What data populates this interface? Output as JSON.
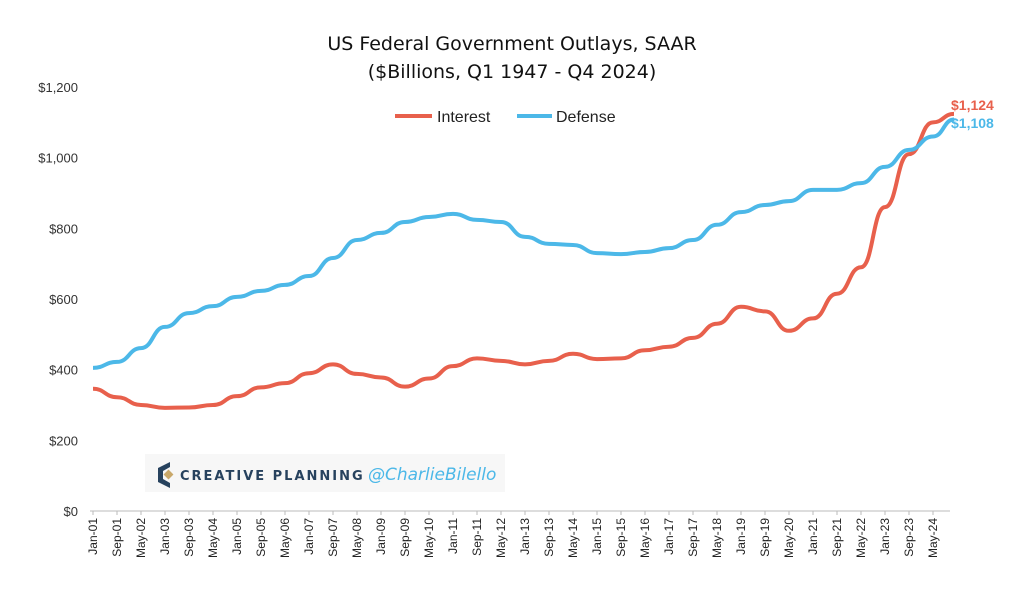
{
  "chart_data": {
    "type": "line",
    "title": "US Federal Government Outlays, SAAR",
    "subtitle": "($Billions, Q1 1947 - Q4 2024)",
    "ylim": [
      0,
      1200
    ],
    "yticks": [
      0,
      200,
      400,
      600,
      800,
      1000,
      1200
    ],
    "ytick_labels": [
      "$0",
      "$200",
      "$400",
      "$600",
      "$800",
      "$1,000",
      "$1,200"
    ],
    "xtick_labels": [
      "Jan-01",
      "Sep-01",
      "May-02",
      "Jan-03",
      "Sep-03",
      "May-04",
      "Jan-05",
      "Sep-05",
      "May-06",
      "Jan-07",
      "Sep-07",
      "May-08",
      "Jan-09",
      "Sep-09",
      "May-10",
      "Jan-11",
      "Sep-11",
      "May-12",
      "Jan-13",
      "Sep-13",
      "May-14",
      "Jan-15",
      "Sep-15",
      "May-16",
      "Jan-17",
      "Sep-17",
      "May-18",
      "Jan-19",
      "Sep-19",
      "May-20",
      "Jan-21",
      "Sep-21",
      "May-22",
      "Jan-23",
      "Sep-23",
      "May-24"
    ],
    "grid": false,
    "legend_position": "top-center",
    "x": [
      "2001-01",
      "2001-09",
      "2002-05",
      "2003-01",
      "2003-09",
      "2004-05",
      "2005-01",
      "2005-09",
      "2006-05",
      "2007-01",
      "2007-09",
      "2008-05",
      "2009-01",
      "2009-09",
      "2010-05",
      "2011-01",
      "2011-09",
      "2012-05",
      "2013-01",
      "2013-09",
      "2014-05",
      "2015-01",
      "2015-09",
      "2016-05",
      "2017-01",
      "2017-09",
      "2018-05",
      "2019-01",
      "2019-09",
      "2020-05",
      "2021-01",
      "2021-09",
      "2022-05",
      "2023-01",
      "2023-09",
      "2024-05",
      "2024-12"
    ],
    "series": [
      {
        "name": "Interest",
        "color": "#e8604c",
        "values": [
          346,
          322,
          300,
          292,
          293,
          300,
          325,
          350,
          362,
          390,
          415,
          388,
          378,
          352,
          375,
          410,
          432,
          425,
          415,
          425,
          445,
          430,
          432,
          455,
          465,
          490,
          530,
          578,
          565,
          510,
          545,
          615,
          690,
          860,
          1010,
          1100,
          1124
        ],
        "end_label": "$1,124"
      },
      {
        "name": "Defense",
        "color": "#4cb8e8",
        "values": [
          405,
          422,
          461,
          521,
          560,
          580,
          606,
          623,
          640,
          665,
          716,
          767,
          787,
          818,
          832,
          841,
          824,
          818,
          776,
          756,
          753,
          730,
          727,
          733,
          744,
          767,
          810,
          846,
          866,
          877,
          909,
          909,
          928,
          974,
          1022,
          1060,
          1108
        ],
        "end_label": "$1,108"
      }
    ]
  },
  "watermark": {
    "brand": "CREATIVE PLANNING",
    "handle": "@CharlieBilello"
  }
}
